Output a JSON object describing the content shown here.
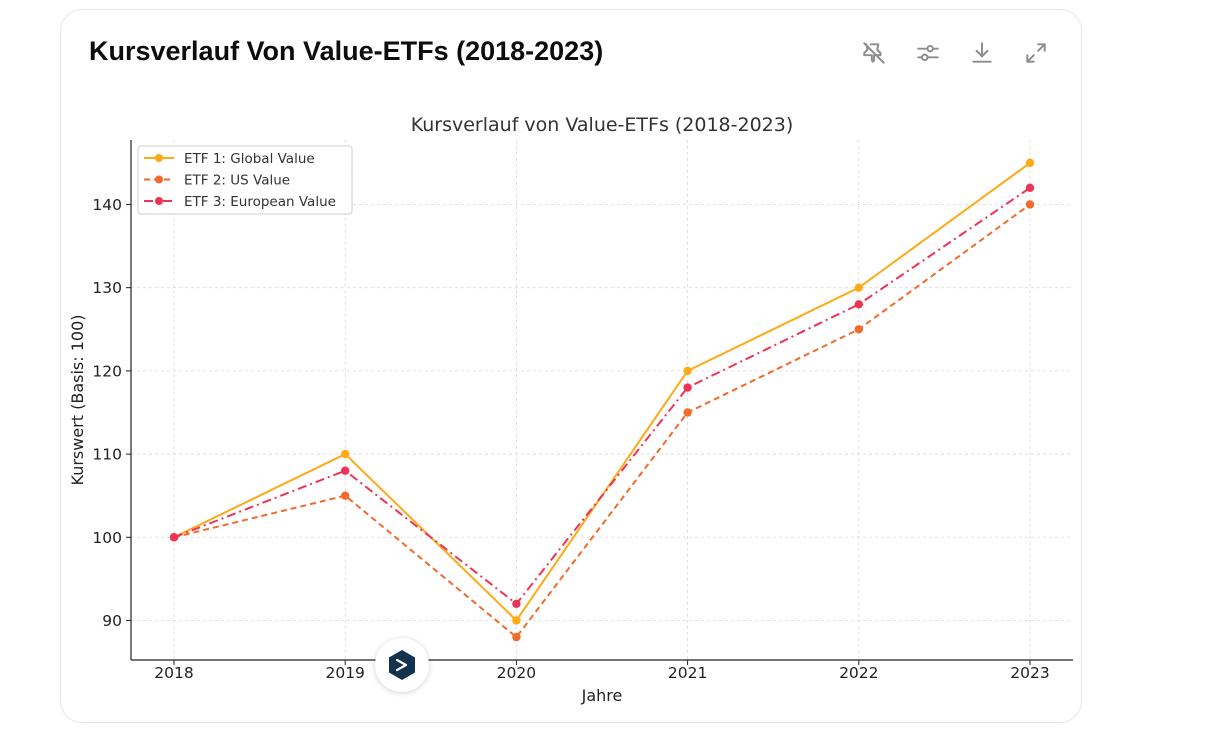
{
  "card": {
    "title": "Kursverlauf Von Value-ETFs (2018-2023)"
  },
  "toolbar": {
    "icons": [
      "unpin-icon",
      "settings-sliders-icon",
      "download-icon",
      "expand-icon"
    ]
  },
  "colors": {
    "etf1": "#FFAA15",
    "etf2": "#F26B2A",
    "etf3": "#EE3355",
    "grid": "#d9d9d9",
    "axis": "#222222",
    "fab_icon": "#13324d"
  },
  "chart_data": {
    "type": "line",
    "title": "Kursverlauf von Value-ETFs (2018-2023)",
    "xlabel": "Jahre",
    "ylabel": "Kurswert (Basis: 100)",
    "categories": [
      "2018",
      "2019",
      "2020",
      "2021",
      "2022",
      "2023"
    ],
    "yticks": [
      90,
      100,
      110,
      120,
      130,
      140
    ],
    "ylim": [
      85.25,
      147.75
    ],
    "grid": true,
    "legend_position": "top-left",
    "series": [
      {
        "name": "ETF 1: Global Value",
        "values": [
          100,
          110,
          90,
          120,
          130,
          145
        ],
        "style": "solid"
      },
      {
        "name": "ETF 2: US Value",
        "values": [
          100,
          105,
          88,
          115,
          125,
          140
        ],
        "style": "dashed"
      },
      {
        "name": "ETF 3: European Value",
        "values": [
          100,
          108,
          92,
          118,
          128,
          142
        ],
        "style": "dashdot"
      }
    ]
  }
}
